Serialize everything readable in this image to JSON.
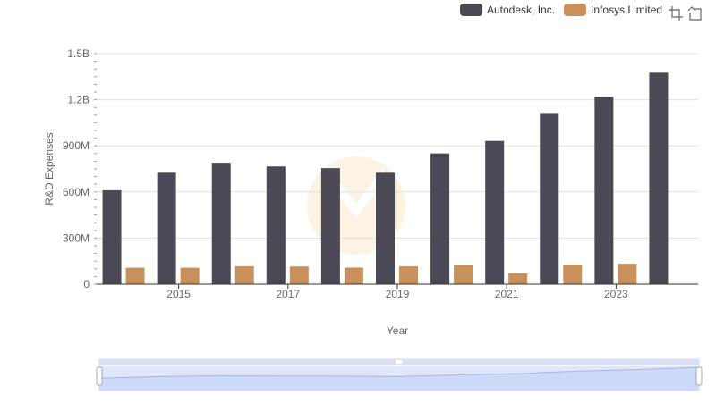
{
  "legend": {
    "items": [
      {
        "name": "Autodesk, Inc.",
        "color": "#4a4955"
      },
      {
        "name": "Infosys Limited",
        "color": "#c8905a"
      }
    ]
  },
  "toolbox": {
    "icons": [
      "zoom-select-icon",
      "zoom-reset-icon"
    ]
  },
  "chart_data": {
    "type": "bar",
    "xlabel": "Year",
    "ylabel": "R&D Expenses",
    "ylim": [
      0,
      1500000000
    ],
    "y_ticks": [
      {
        "value": 0,
        "label": "0"
      },
      {
        "value": 300000000,
        "label": "300M"
      },
      {
        "value": 600000000,
        "label": "600M"
      },
      {
        "value": 900000000,
        "label": "900M"
      },
      {
        "value": 1200000000,
        "label": "1.2B"
      },
      {
        "value": 1500000000,
        "label": "1.5B"
      }
    ],
    "categories": [
      "2014",
      "2015",
      "2016",
      "2017",
      "2018",
      "2019",
      "2020",
      "2021",
      "2022",
      "2023",
      "2024"
    ],
    "x_tick_labels": [
      "2015",
      "2017",
      "2019",
      "2021",
      "2023"
    ],
    "series": [
      {
        "name": "Autodesk, Inc.",
        "color": "#4a4955",
        "values": [
          611000000,
          725000000,
          790000000,
          766000000,
          755000000,
          725000000,
          851000000,
          932000000,
          1114000000,
          1219000000,
          1376000000
        ]
      },
      {
        "name": "Infosys Limited",
        "color": "#c8905a",
        "values": [
          107000000,
          107000000,
          117000000,
          115000000,
          108000000,
          116000000,
          126000000,
          70000000,
          128000000,
          133000000,
          null
        ]
      }
    ],
    "grid": true,
    "legend_position": "top-right",
    "zoom_slider": true
  }
}
